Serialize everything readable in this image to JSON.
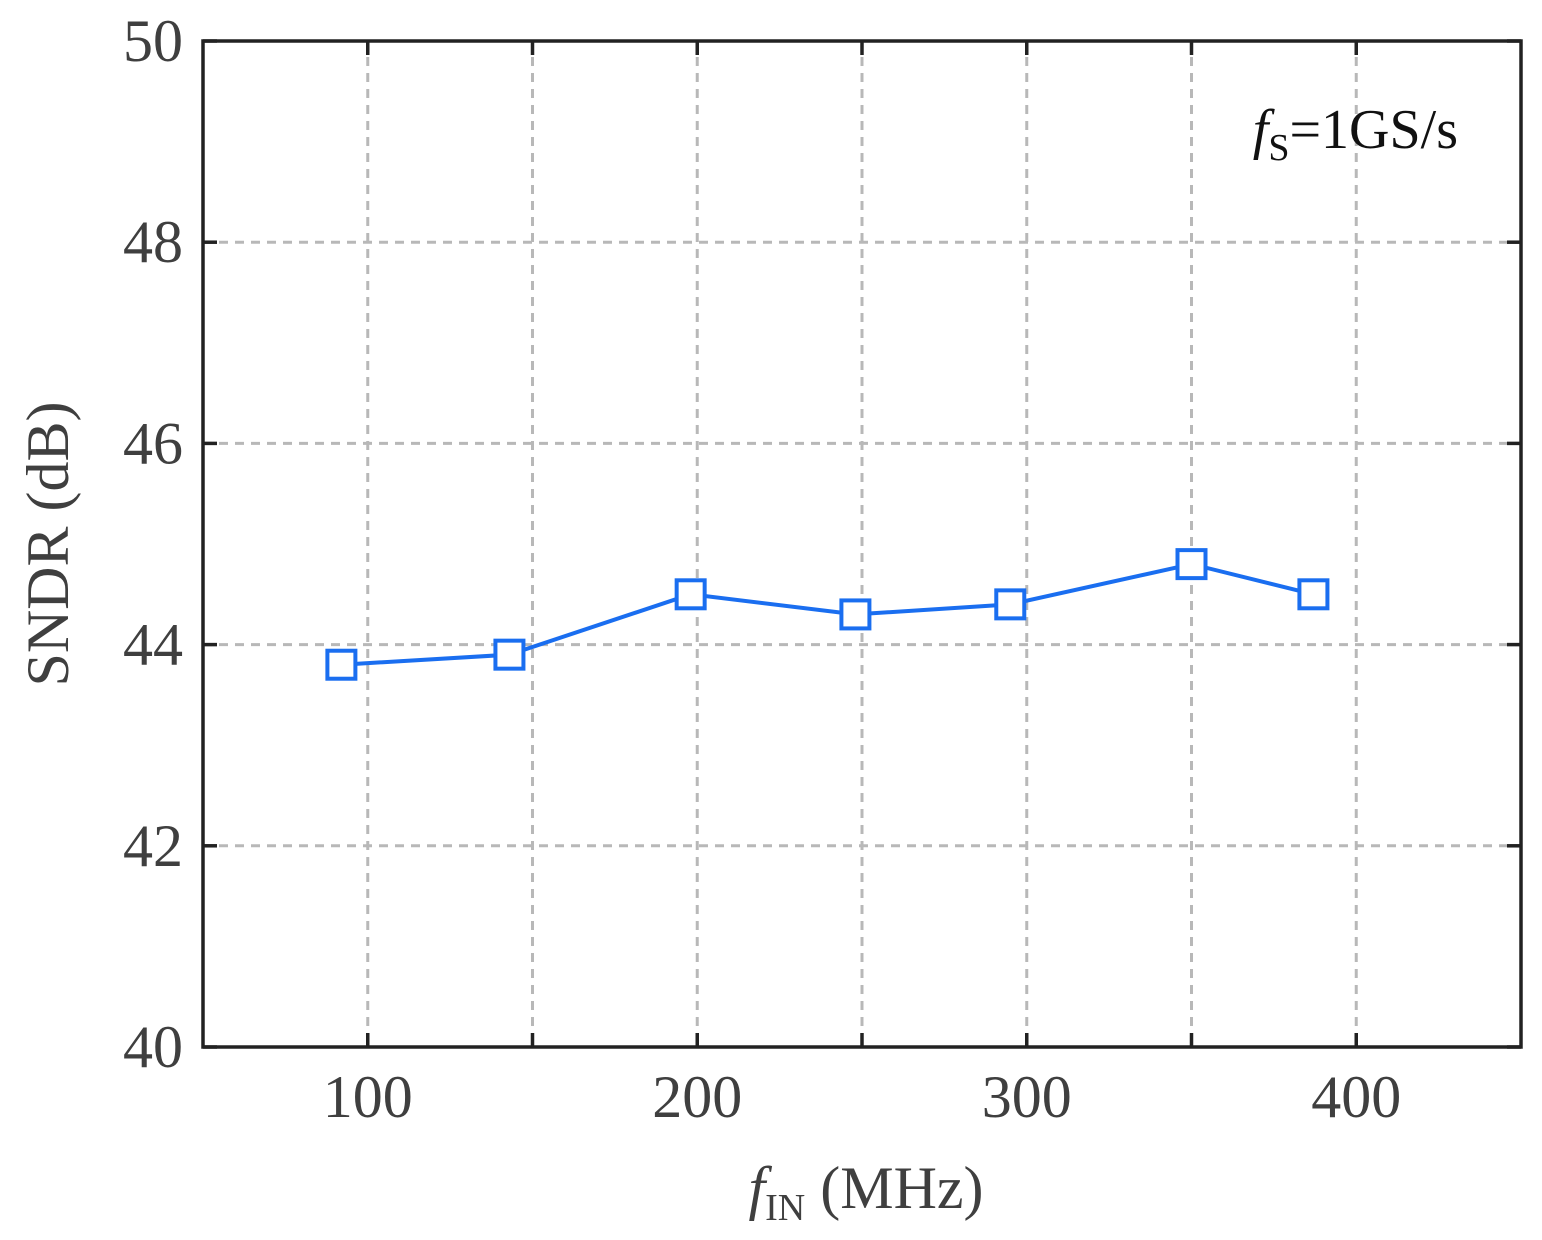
{
  "chart_data": {
    "type": "line",
    "title": "",
    "xlabel": {
      "main": "f",
      "sub": "IN",
      "rest": " (MHz)"
    },
    "ylabel": "SNDR (dB)",
    "xlim": [
      50,
      450
    ],
    "ylim": [
      40,
      50
    ],
    "xticks": [
      100,
      200,
      300,
      400
    ],
    "yticks": [
      40,
      42,
      44,
      46,
      48,
      50
    ],
    "grid": true,
    "annotation": {
      "main": "f",
      "sub": "S",
      "rest": "=1GS/s"
    },
    "series": [
      {
        "color": "#1a6ef0",
        "marker": "square",
        "x": [
          92,
          143,
          198,
          248,
          295,
          350,
          387
        ],
        "y": [
          43.8,
          43.9,
          44.5,
          44.3,
          44.4,
          44.8,
          44.5
        ]
      }
    ]
  }
}
